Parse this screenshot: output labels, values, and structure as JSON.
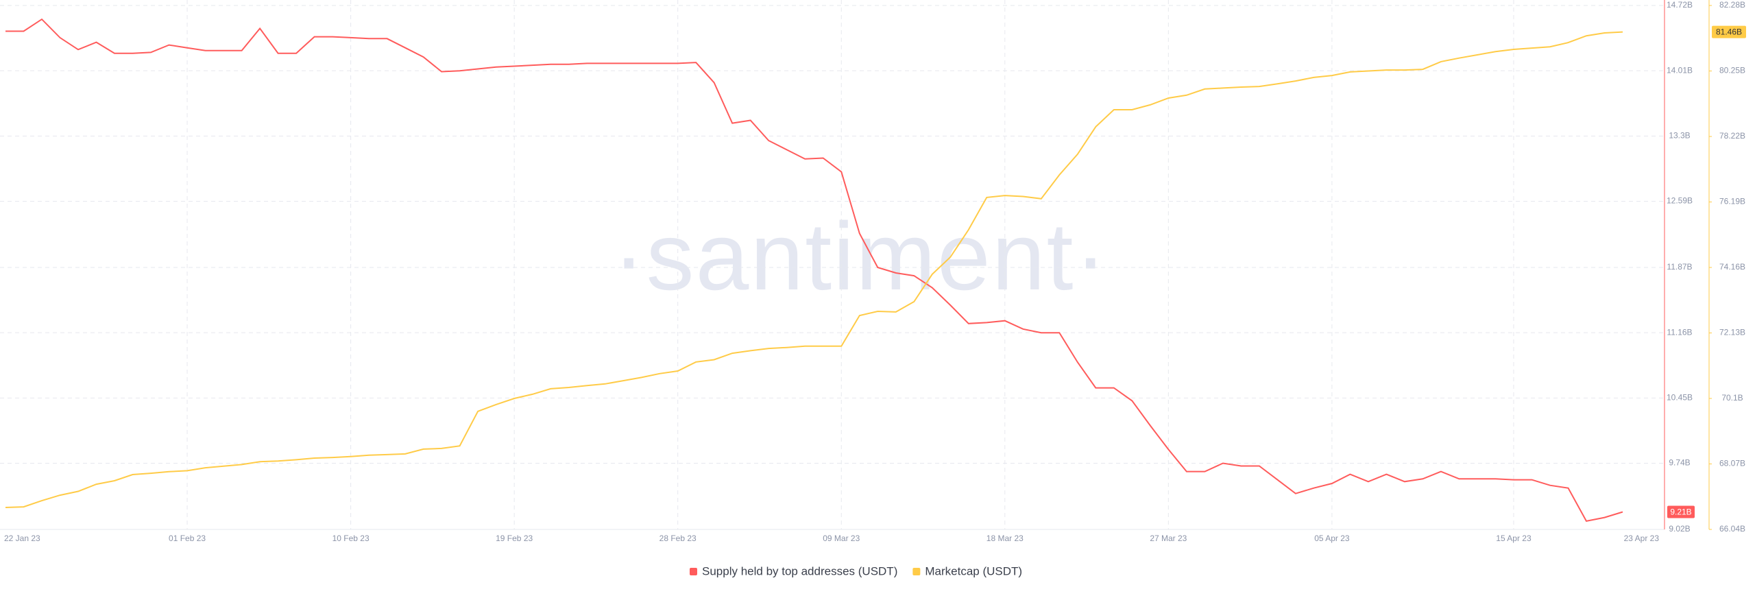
{
  "chart_data": {
    "type": "line",
    "watermark": "·santiment·",
    "x": [
      "2023-01-22",
      "2023-01-23",
      "2023-01-24",
      "2023-01-25",
      "2023-01-26",
      "2023-01-27",
      "2023-01-28",
      "2023-01-29",
      "2023-01-30",
      "2023-01-31",
      "2023-02-01",
      "2023-02-02",
      "2023-02-03",
      "2023-02-04",
      "2023-02-05",
      "2023-02-06",
      "2023-02-07",
      "2023-02-08",
      "2023-02-09",
      "2023-02-10",
      "2023-02-11",
      "2023-02-12",
      "2023-02-13",
      "2023-02-14",
      "2023-02-15",
      "2023-02-16",
      "2023-02-17",
      "2023-02-18",
      "2023-02-19",
      "2023-02-20",
      "2023-02-21",
      "2023-02-22",
      "2023-02-23",
      "2023-02-24",
      "2023-02-25",
      "2023-02-26",
      "2023-02-27",
      "2023-02-28",
      "2023-03-01",
      "2023-03-02",
      "2023-03-03",
      "2023-03-04",
      "2023-03-05",
      "2023-03-06",
      "2023-03-07",
      "2023-03-08",
      "2023-03-09",
      "2023-03-10",
      "2023-03-11",
      "2023-03-12",
      "2023-03-13",
      "2023-03-14",
      "2023-03-15",
      "2023-03-16",
      "2023-03-17",
      "2023-03-18",
      "2023-03-19",
      "2023-03-20",
      "2023-03-21",
      "2023-03-22",
      "2023-03-23",
      "2023-03-24",
      "2023-03-25",
      "2023-03-26",
      "2023-03-27",
      "2023-03-28",
      "2023-03-29",
      "2023-03-30",
      "2023-03-31",
      "2023-04-01",
      "2023-04-02",
      "2023-04-03",
      "2023-04-04",
      "2023-04-05",
      "2023-04-06",
      "2023-04-07",
      "2023-04-08",
      "2023-04-09",
      "2023-04-10",
      "2023-04-11",
      "2023-04-12",
      "2023-04-13",
      "2023-04-14",
      "2023-04-15",
      "2023-04-16",
      "2023-04-17",
      "2023-04-18",
      "2023-04-19",
      "2023-04-20",
      "2023-04-21"
    ],
    "xlim": [
      "2023-01-22",
      "2023-04-23"
    ],
    "xticks": [
      {
        "value": "2023-01-22",
        "label": "22 Jan 23"
      },
      {
        "value": "2023-02-01",
        "label": "01 Feb 23"
      },
      {
        "value": "2023-02-10",
        "label": "10 Feb 23"
      },
      {
        "value": "2023-02-19",
        "label": "19 Feb 23"
      },
      {
        "value": "2023-02-28",
        "label": "28 Feb 23"
      },
      {
        "value": "2023-03-09",
        "label": "09 Mar 23"
      },
      {
        "value": "2023-03-18",
        "label": "18 Mar 23"
      },
      {
        "value": "2023-03-27",
        "label": "27 Mar 23"
      },
      {
        "value": "2023-04-05",
        "label": "05 Apr 23"
      },
      {
        "value": "2023-04-15",
        "label": "15 Apr 23"
      },
      {
        "value": "2023-04-23",
        "label": "23 Apr 23"
      }
    ],
    "ylim": [
      9.02,
      14.72
    ],
    "yticks": [
      {
        "value": 9.02,
        "label": "9.02B"
      },
      {
        "value": 9.74,
        "label": "9.74B"
      },
      {
        "value": 10.45,
        "label": "10.45B"
      },
      {
        "value": 11.16,
        "label": "11.16B"
      },
      {
        "value": 11.87,
        "label": "11.87B"
      },
      {
        "value": 12.59,
        "label": "12.59B"
      },
      {
        "value": 13.3,
        "label": "13.3B"
      },
      {
        "value": 14.01,
        "label": "14.01B"
      },
      {
        "value": 14.72,
        "label": "14.72B"
      }
    ],
    "y2lim": [
      66.04,
      82.28
    ],
    "y2ticks": [
      {
        "value": 66.04,
        "label": "66.04B"
      },
      {
        "value": 68.07,
        "label": "68.07B"
      },
      {
        "value": 70.1,
        "label": "70.1B"
      },
      {
        "value": 72.13,
        "label": "72.13B"
      },
      {
        "value": 74.16,
        "label": "74.16B"
      },
      {
        "value": 76.19,
        "label": "76.19B"
      },
      {
        "value": 78.22,
        "label": "78.22B"
      },
      {
        "value": 80.25,
        "label": "80.25B"
      },
      {
        "value": 82.28,
        "label": "82.28B"
      }
    ],
    "grid": true,
    "series": [
      {
        "name": "Supply held by top addresses (USDT)",
        "color": "#ff5b5b",
        "axis": "y",
        "values": [
          14.44,
          14.44,
          14.57,
          14.37,
          14.24,
          14.32,
          14.2,
          14.2,
          14.21,
          14.29,
          14.26,
          14.23,
          14.23,
          14.23,
          14.47,
          14.2,
          14.2,
          14.38,
          14.38,
          14.37,
          14.36,
          14.36,
          14.26,
          14.16,
          14.0,
          14.01,
          14.03,
          14.05,
          14.06,
          14.07,
          14.08,
          14.08,
          14.09,
          14.09,
          14.09,
          14.09,
          14.09,
          14.09,
          14.1,
          13.88,
          13.44,
          13.47,
          13.25,
          13.15,
          13.05,
          13.06,
          12.91,
          12.24,
          11.87,
          11.81,
          11.78,
          11.65,
          11.46,
          11.26,
          11.27,
          11.29,
          11.2,
          11.16,
          11.16,
          10.84,
          10.56,
          10.56,
          10.42,
          10.15,
          9.89,
          9.65,
          9.65,
          9.74,
          9.71,
          9.71,
          9.56,
          9.41,
          9.47,
          9.52,
          9.62,
          9.54,
          9.62,
          9.54,
          9.57,
          9.65,
          9.57,
          9.57,
          9.57,
          9.56,
          9.56,
          9.5,
          9.47,
          9.11,
          9.15,
          9.21
        ],
        "value_labels": [
          null,
          null,
          null,
          null,
          null,
          null,
          null,
          null,
          null,
          null,
          null,
          null,
          null,
          null,
          null,
          null,
          null,
          null,
          null,
          null,
          null,
          null,
          null,
          null,
          null,
          null,
          null,
          null,
          null,
          null,
          null,
          null,
          null,
          null,
          null,
          null,
          null,
          null,
          null,
          null,
          null,
          null,
          null,
          null,
          null,
          null,
          null,
          null,
          null,
          null,
          null,
          null,
          null,
          null,
          null,
          null,
          null,
          null,
          null,
          null,
          null,
          null,
          null,
          null,
          null,
          null,
          null,
          null,
          null,
          null,
          null,
          null,
          null,
          null,
          null,
          null,
          null,
          null,
          null,
          null,
          null,
          null,
          null,
          null,
          null,
          null,
          null,
          null,
          null,
          "9.21B"
        ]
      },
      {
        "name": "Marketcap (USDT)",
        "color": "#ffcb47",
        "axis": "y2",
        "values": [
          66.72,
          66.74,
          66.93,
          67.1,
          67.22,
          67.44,
          67.55,
          67.74,
          67.78,
          67.83,
          67.86,
          67.95,
          68.0,
          68.05,
          68.14,
          68.16,
          68.2,
          68.25,
          68.27,
          68.3,
          68.34,
          68.36,
          68.38,
          68.53,
          68.55,
          68.63,
          69.7,
          69.91,
          70.1,
          70.23,
          70.4,
          70.44,
          70.5,
          70.55,
          70.65,
          70.75,
          70.87,
          70.95,
          71.23,
          71.3,
          71.5,
          71.58,
          71.65,
          71.68,
          71.72,
          71.72,
          71.72,
          72.67,
          72.8,
          72.78,
          73.1,
          73.95,
          74.48,
          75.33,
          76.33,
          76.39,
          76.36,
          76.29,
          77.03,
          77.67,
          78.52,
          79.05,
          79.05,
          79.2,
          79.41,
          79.5,
          79.69,
          79.72,
          79.75,
          79.77,
          79.85,
          79.94,
          80.05,
          80.11,
          80.22,
          80.25,
          80.28,
          80.28,
          80.3,
          80.54,
          80.65,
          80.75,
          80.85,
          80.92,
          80.96,
          81.0,
          81.13,
          81.34,
          81.43,
          81.46
        ],
        "value_labels": [
          null,
          null,
          null,
          null,
          null,
          null,
          null,
          null,
          null,
          null,
          null,
          null,
          null,
          null,
          null,
          null,
          null,
          null,
          null,
          null,
          null,
          null,
          null,
          null,
          null,
          null,
          null,
          null,
          null,
          null,
          null,
          null,
          null,
          null,
          null,
          null,
          null,
          null,
          null,
          null,
          null,
          null,
          null,
          null,
          null,
          null,
          null,
          null,
          null,
          null,
          null,
          null,
          null,
          null,
          null,
          null,
          null,
          null,
          null,
          null,
          null,
          null,
          null,
          null,
          null,
          null,
          null,
          null,
          null,
          null,
          null,
          null,
          null,
          null,
          null,
          null,
          null,
          null,
          null,
          null,
          null,
          null,
          null,
          null,
          null,
          null,
          null,
          null,
          null,
          "81.46B"
        ]
      }
    ]
  }
}
